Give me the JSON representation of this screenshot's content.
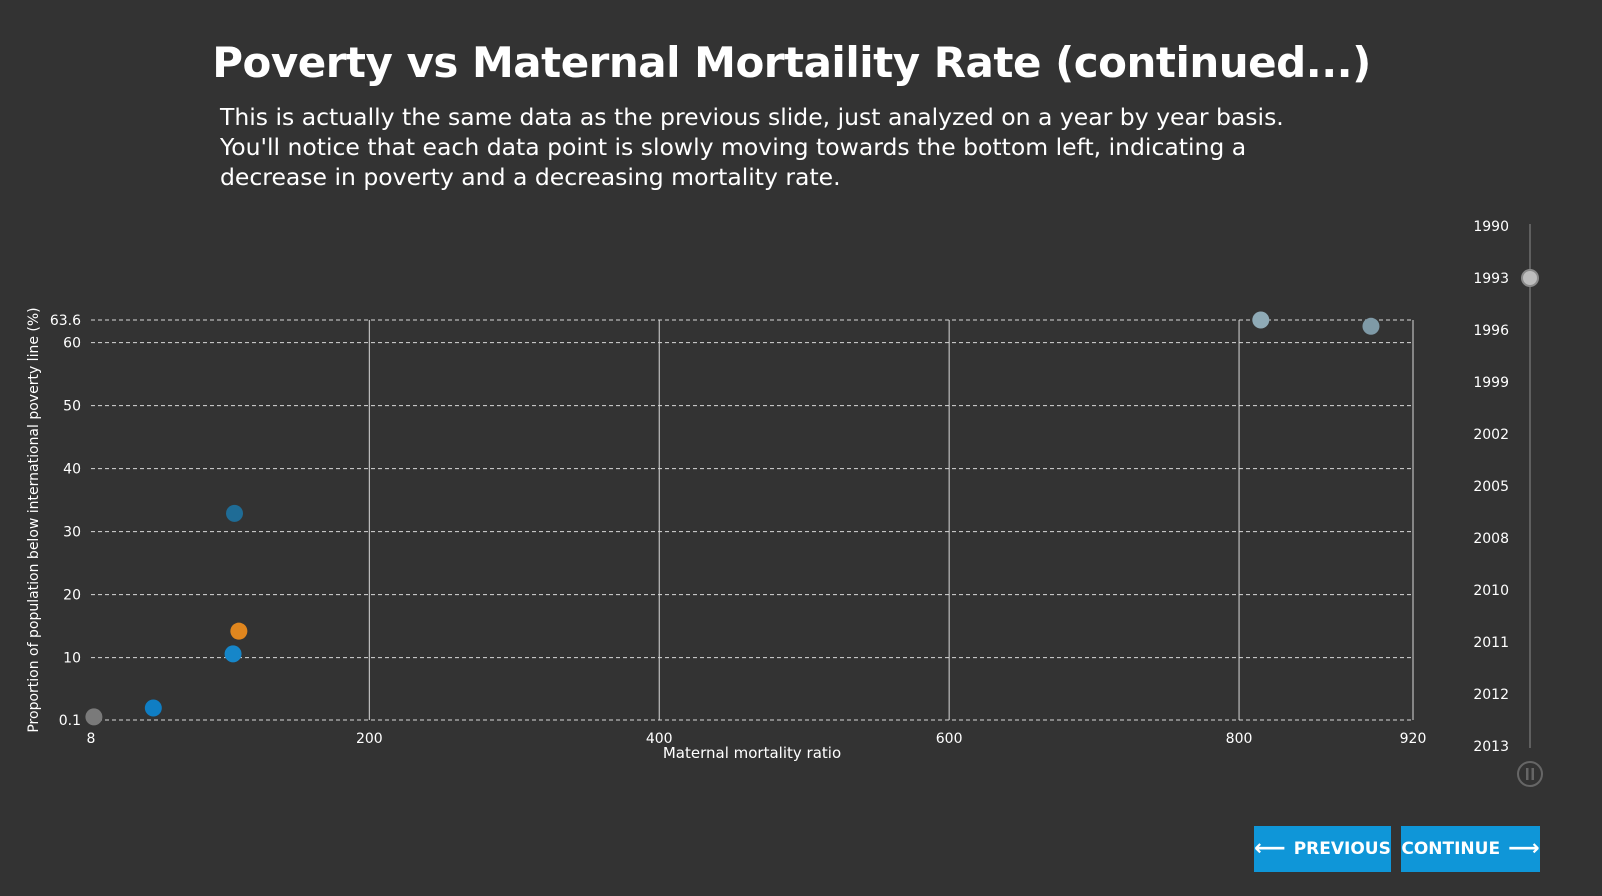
{
  "title": "Poverty vs Maternal Mortaility Rate (continued...)",
  "description": "This is actually the same data as the previous slide, just analyzed on a year by year basis. You'll notice that each data point is slowly moving towards the bottom left, indicating a decrease in poverty and a decreasing mortality rate.",
  "chart_data": {
    "type": "scatter",
    "xlabel": "Maternal mortality ratio",
    "ylabel": "Proportion of population below international poverty line (%)",
    "xlim": [
      8,
      920
    ],
    "ylim": [
      0.1,
      63.6
    ],
    "x_ticks": [
      8,
      200,
      400,
      600,
      800,
      920
    ],
    "y_ticks": [
      0.1,
      10,
      20,
      30,
      40,
      50,
      60,
      63.6
    ],
    "grid": true,
    "points": [
      {
        "x": 10,
        "y": 0.6,
        "color": "#7a7a7a"
      },
      {
        "x": 51,
        "y": 2.0,
        "color": "#0f7ec4"
      },
      {
        "x": 107,
        "y": 32.9,
        "color": "#1f6c96"
      },
      {
        "x": 110,
        "y": 14.2,
        "color": "#e0861e"
      },
      {
        "x": 106,
        "y": 10.6,
        "color": "#1686c9"
      },
      {
        "x": 815,
        "y": 63.6,
        "color": "#8faab6"
      },
      {
        "x": 891,
        "y": 62.6,
        "color": "#7f9aa7"
      }
    ]
  },
  "year_slider": {
    "years": [
      "1990",
      "1993",
      "1996",
      "1999",
      "2002",
      "2005",
      "2008",
      "2010",
      "2011",
      "2012",
      "2013"
    ],
    "selected": "1993",
    "pause_icon": "pause-icon"
  },
  "buttons": {
    "previous_label": "PREVIOUS",
    "continue_label": "CONTINUE",
    "previous_icon": "arrow-left-icon",
    "continue_icon": "arrow-right-icon",
    "color": "#0f96d8"
  }
}
